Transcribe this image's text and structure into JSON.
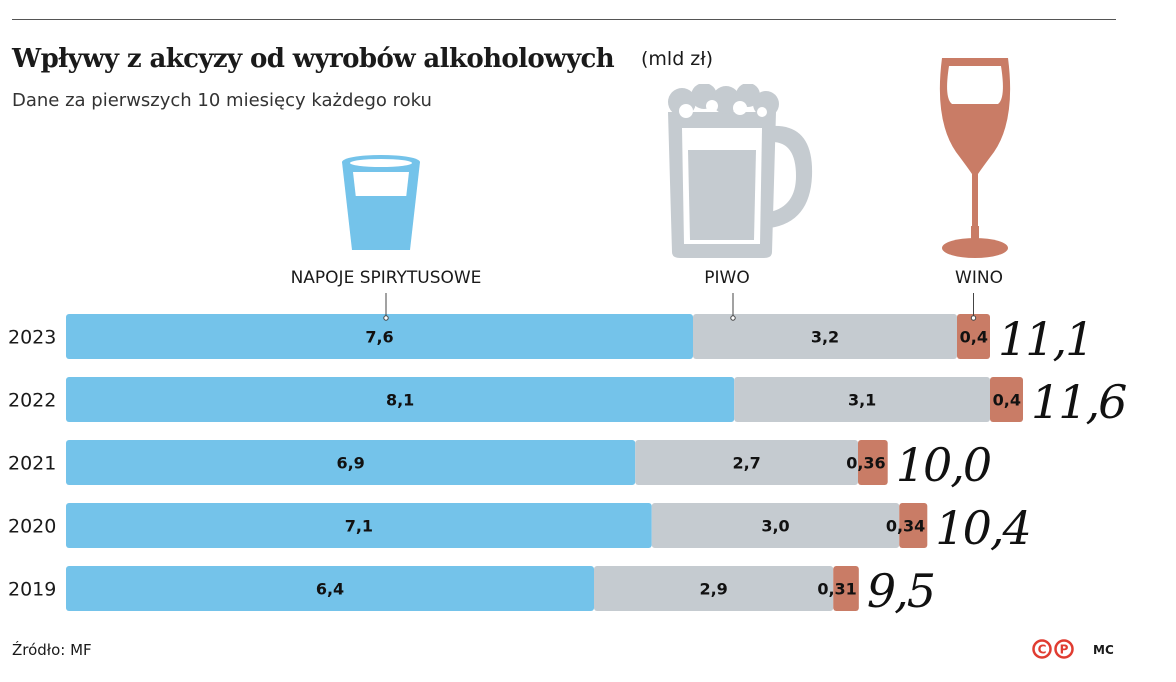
{
  "header": {
    "title": "Wpływy z akcyzy od wyrobów alkoholowych",
    "unit": "(mld zł)",
    "subtitle": "Dane za pierwszych 10 miesięcy każdego roku"
  },
  "footer": {
    "source": "Źródło: MF",
    "credit": "MC",
    "logo": "CP"
  },
  "icons": [
    "shot-glass-icon",
    "beer-mug-icon",
    "wine-glass-icon"
  ],
  "colors": {
    "spirits": "#74c3ea",
    "beer": "#c5cbd0",
    "wine": "#c97c66",
    "logo": "#e03c31"
  },
  "chart_data": {
    "type": "bar",
    "orientation": "horizontal",
    "stacked": true,
    "categories": [
      "2023",
      "2022",
      "2021",
      "2020",
      "2019"
    ],
    "series": [
      {
        "name": "NAPOJE SPIRYTUSOWE",
        "values": [
          7.6,
          8.1,
          6.9,
          7.1,
          6.4
        ],
        "labels": [
          "7,6",
          "8,1",
          "6,9",
          "7,1",
          "6,4"
        ]
      },
      {
        "name": "PIWO",
        "values": [
          3.2,
          3.1,
          2.7,
          3.0,
          2.9
        ],
        "labels": [
          "3,2",
          "3,1",
          "2,7",
          "3,0",
          "2,9"
        ]
      },
      {
        "name": "WINO",
        "values": [
          0.4,
          0.4,
          0.36,
          0.34,
          0.31
        ],
        "labels": [
          "0,4",
          "0,4",
          "0,36",
          "0,34",
          "0,31"
        ]
      }
    ],
    "totals": [
      "11,1",
      "11,6",
      "10,0",
      "10,4",
      "9,5"
    ]
  }
}
